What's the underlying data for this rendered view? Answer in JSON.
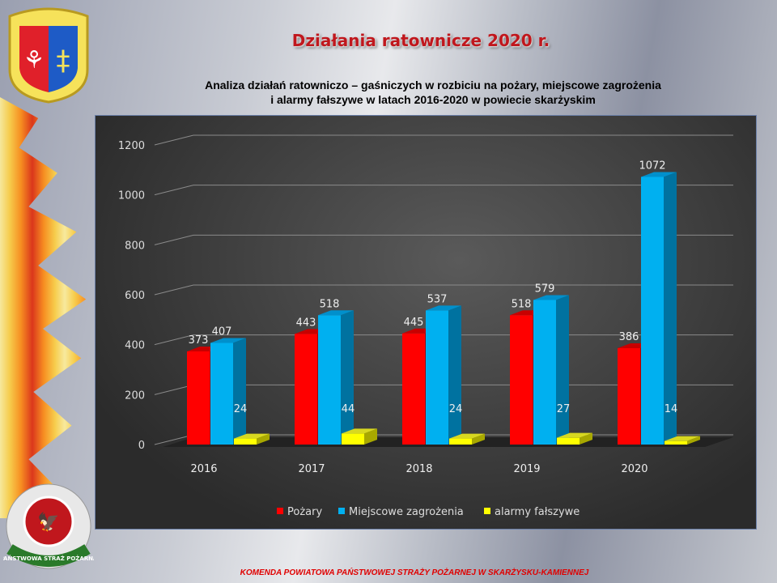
{
  "header": {
    "title": "Działania ratownicze 2020 r.",
    "subtitle_line1": "Analiza działań ratowniczo – gaśniczych w rozbiciu na pożary, miejscowe zagrożenia",
    "subtitle_line2": "i alarmy fałszywe w latach 2016-2020 w  powiecie skarżyskim"
  },
  "footer": {
    "text": "KOMENDA POWIATOWA  PAŃSTWOWEJ STRAŻY POŻARNEJ W SKARŻYSKU-KAMIENNEJ"
  },
  "logos": {
    "bottom_left_text": "PAŃSTWOWA STRAŻ POŻARNA"
  },
  "chart_data": {
    "type": "bar",
    "subtype": "3d-clustered-column",
    "categories": [
      "2016",
      "2017",
      "2018",
      "2019",
      "2020"
    ],
    "series": [
      {
        "name": "Pożary",
        "color": "#ff0000",
        "values": [
          373,
          443,
          445,
          518,
          386
        ]
      },
      {
        "name": "Miejscowe zagrożenia",
        "color": "#00b0f0",
        "values": [
          407,
          518,
          537,
          579,
          1072
        ]
      },
      {
        "name": "alarmy fałszywe",
        "color": "#ffff00",
        "values": [
          24,
          44,
          24,
          27,
          14
        ]
      }
    ],
    "yticks": [
      0,
      200,
      400,
      600,
      800,
      1000,
      1200
    ],
    "ylim": [
      0,
      1200
    ],
    "grid": true,
    "legend": "bottom",
    "data_labels": true
  }
}
